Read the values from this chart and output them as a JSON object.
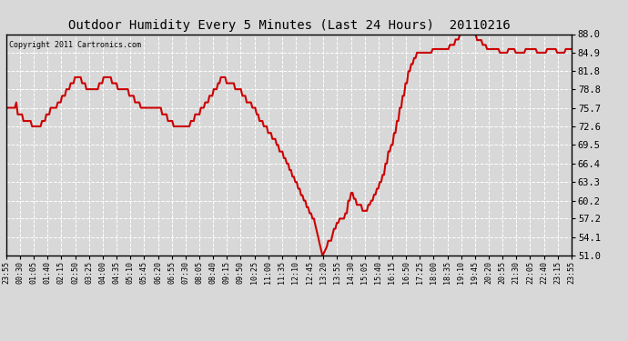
{
  "title": "Outdoor Humidity Every 5 Minutes (Last 24 Hours)  20110216",
  "copyright": "Copyright 2011 Cartronics.com",
  "background_color": "#d8d8d8",
  "plot_bg_color": "#d8d8d8",
  "line_color": "#cc0000",
  "grid_color": "#b0b0b0",
  "yticks": [
    51.0,
    54.1,
    57.2,
    60.2,
    63.3,
    66.4,
    69.5,
    72.6,
    75.7,
    78.8,
    81.8,
    84.9,
    88.0
  ],
  "ylim": [
    51.0,
    88.0
  ],
  "xtick_labels": [
    "23:55",
    "00:30",
    "01:05",
    "01:40",
    "02:15",
    "02:50",
    "03:25",
    "04:00",
    "04:35",
    "05:10",
    "05:45",
    "06:20",
    "06:55",
    "07:30",
    "08:05",
    "08:40",
    "09:15",
    "09:50",
    "10:25",
    "11:00",
    "11:35",
    "12:10",
    "12:45",
    "13:20",
    "13:55",
    "14:30",
    "15:05",
    "15:40",
    "16:15",
    "16:50",
    "17:25",
    "18:00",
    "18:35",
    "19:10",
    "19:45",
    "20:20",
    "20:55",
    "21:30",
    "22:05",
    "22:40",
    "23:15",
    "23:55"
  ],
  "humidity_values": [
    75.7,
    75.7,
    75.7,
    75.7,
    75.7,
    75.7,
    75.7,
    76.6,
    74.6,
    74.6,
    74.6,
    74.6,
    73.5,
    73.5,
    73.5,
    73.5,
    73.5,
    73.5,
    72.6,
    72.6,
    72.6,
    72.6,
    72.6,
    72.6,
    72.6,
    73.5,
    73.5,
    73.5,
    74.6,
    74.6,
    74.6,
    75.7,
    75.7,
    75.7,
    75.7,
    75.7,
    76.6,
    76.6,
    76.6,
    77.7,
    77.7,
    77.7,
    78.8,
    78.8,
    78.8,
    79.8,
    79.8,
    79.8,
    80.8,
    80.8,
    80.8,
    80.8,
    80.8,
    79.8,
    79.8,
    79.8,
    78.8,
    78.8,
    78.8,
    78.8,
    78.8,
    78.8,
    78.8,
    78.8,
    78.8,
    79.8,
    79.8,
    79.8,
    80.8,
    80.8,
    80.8,
    80.8,
    80.8,
    80.8,
    79.8,
    79.8,
    79.8,
    79.8,
    78.8,
    78.8,
    78.8,
    78.8,
    78.8,
    78.8,
    78.8,
    78.8,
    77.7,
    77.7,
    77.7,
    77.7,
    76.6,
    76.6,
    76.6,
    76.6,
    75.7,
    75.7,
    75.7,
    75.7,
    75.7,
    75.7,
    75.7,
    75.7,
    75.7,
    75.7,
    75.7,
    75.7,
    75.7,
    75.7,
    75.7,
    74.6,
    74.6,
    74.6,
    74.6,
    73.5,
    73.5,
    73.5,
    73.5,
    72.6,
    72.6,
    72.6,
    72.6,
    72.6,
    72.6,
    72.6,
    72.6,
    72.6,
    72.6,
    72.6,
    72.6,
    73.5,
    73.5,
    73.5,
    74.6,
    74.6,
    74.6,
    74.6,
    75.7,
    75.7,
    75.7,
    76.6,
    76.6,
    76.6,
    77.7,
    77.7,
    77.7,
    78.8,
    78.8,
    78.8,
    79.8,
    79.8,
    80.8,
    80.8,
    80.8,
    80.8,
    79.8,
    79.8,
    79.8,
    79.8,
    79.8,
    79.8,
    78.8,
    78.8,
    78.8,
    78.8,
    78.8,
    77.7,
    77.7,
    77.7,
    76.6,
    76.6,
    76.6,
    76.6,
    75.7,
    75.7,
    75.7,
    74.6,
    74.6,
    73.5,
    73.5,
    73.5,
    72.6,
    72.6,
    72.6,
    71.5,
    71.5,
    71.5,
    70.5,
    70.5,
    70.5,
    69.5,
    69.5,
    68.4,
    68.4,
    68.4,
    67.3,
    67.3,
    66.4,
    66.4,
    65.3,
    65.3,
    64.2,
    64.2,
    63.3,
    63.3,
    62.2,
    62.2,
    61.1,
    61.1,
    60.2,
    60.2,
    59.1,
    59.1,
    58.1,
    58.1,
    57.2,
    57.2,
    56.1,
    55.1,
    54.1,
    53.0,
    52.0,
    51.0,
    51.5,
    52.0,
    52.5,
    53.5,
    53.5,
    53.5,
    54.5,
    55.5,
    55.5,
    56.5,
    56.5,
    57.2,
    57.2,
    57.2,
    57.2,
    58.1,
    58.1,
    60.2,
    60.2,
    61.5,
    61.5,
    60.5,
    60.5,
    59.5,
    59.5,
    59.5,
    59.5,
    58.5,
    58.5,
    58.5,
    58.5,
    59.5,
    59.5,
    60.2,
    60.2,
    61.2,
    61.2,
    62.2,
    62.2,
    63.3,
    63.3,
    64.5,
    64.5,
    66.4,
    66.4,
    68.4,
    68.4,
    69.5,
    69.5,
    71.5,
    71.5,
    73.5,
    73.5,
    75.7,
    75.7,
    77.7,
    77.7,
    79.8,
    79.8,
    81.8,
    81.8,
    83.0,
    83.0,
    84.0,
    84.0,
    84.9,
    84.9,
    84.9,
    84.9,
    84.9,
    84.9,
    84.9,
    84.9,
    84.9,
    84.9,
    84.9,
    85.5,
    85.5,
    85.5,
    85.5,
    85.5,
    85.5,
    85.5,
    85.5,
    85.5,
    85.5,
    85.5,
    85.5,
    86.2,
    86.2,
    86.2,
    86.2,
    87.1,
    87.1,
    87.1,
    88.0,
    88.0,
    88.0,
    88.0,
    88.0,
    88.0,
    88.0,
    88.0,
    88.0,
    88.0,
    88.0,
    88.0,
    87.0,
    87.0,
    87.0,
    87.0,
    86.2,
    86.2,
    86.2,
    85.5,
    85.5,
    85.5,
    85.5,
    85.5,
    85.5,
    85.5,
    85.5,
    85.5,
    84.9,
    84.9,
    84.9,
    84.9,
    84.9,
    84.9,
    85.5,
    85.5,
    85.5,
    85.5,
    85.5,
    84.9,
    84.9,
    84.9,
    84.9,
    84.9,
    84.9,
    84.9,
    85.5,
    85.5,
    85.5,
    85.5,
    85.5,
    85.5,
    85.5,
    85.5,
    84.9,
    84.9,
    84.9,
    84.9,
    84.9,
    84.9,
    84.9,
    85.5,
    85.5,
    85.5,
    85.5,
    85.5,
    85.5,
    85.5,
    84.9,
    84.9,
    84.9,
    84.9,
    84.9,
    84.9,
    85.5,
    85.5,
    85.5,
    85.5,
    85.5
  ]
}
